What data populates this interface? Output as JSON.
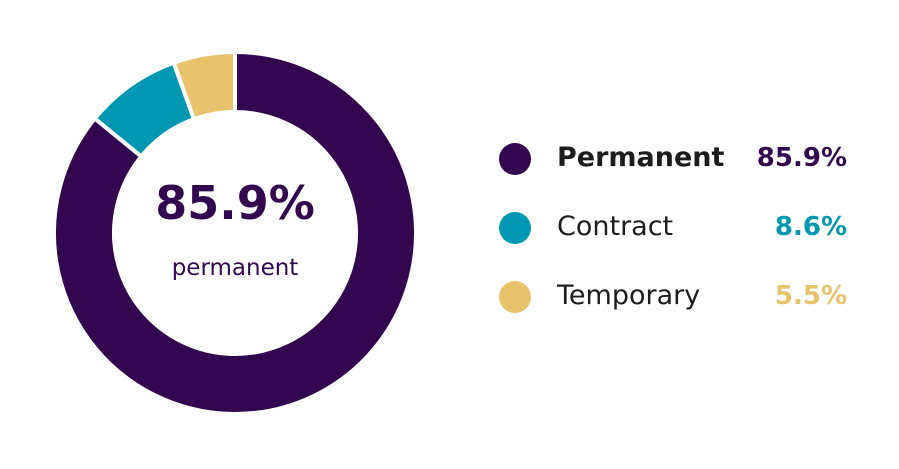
{
  "chart_data": {
    "type": "pie",
    "donut": true,
    "categories": [
      "Permanent",
      "Contract",
      "Temporary"
    ],
    "values": [
      85.9,
      8.6,
      5.5
    ],
    "value_labels": [
      "85.9%",
      "8.6%",
      "5.5%"
    ],
    "colors": [
      "#330750",
      "#0097b2",
      "#e8c36b"
    ],
    "center": {
      "value": "85.9%",
      "label": "permanent"
    },
    "legend_position": "right",
    "emphasized_category": "Permanent"
  }
}
